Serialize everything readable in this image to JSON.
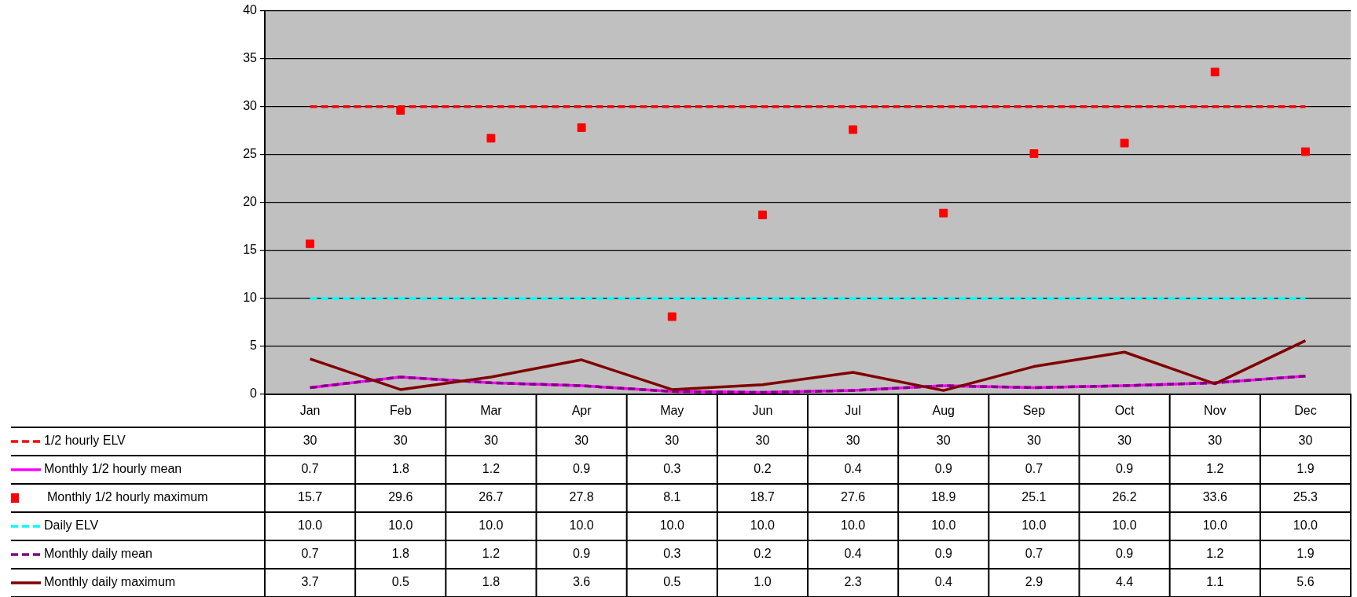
{
  "chart_data": {
    "type": "line",
    "categories": [
      "Jan",
      "Feb",
      "Mar",
      "Apr",
      "May",
      "Jun",
      "Jul",
      "Aug",
      "Sep",
      "Oct",
      "Nov",
      "Dec"
    ],
    "ylim": [
      0,
      40
    ],
    "yticks": [
      0,
      5,
      10,
      15,
      20,
      25,
      30,
      35,
      40
    ],
    "grid": "y",
    "legend": "bottom left",
    "data_labels": true,
    "series": [
      {
        "name": "1/2 hourly ELV",
        "line_style": "dashed",
        "marker": "none",
        "color": "#ff0000",
        "values": [
          30,
          30,
          30,
          30,
          30,
          30,
          30,
          30,
          30,
          30,
          30,
          30
        ],
        "value_labels": [
          "30",
          "30",
          "30",
          "30",
          "30",
          "30",
          "30",
          "30",
          "30",
          "30",
          "30",
          "30"
        ]
      },
      {
        "name": "Monthly 1/2 hourly mean",
        "line_style": "solid",
        "marker": "none",
        "color": "#ff00ff",
        "values": [
          0.7,
          1.8,
          1.2,
          0.9,
          0.3,
          0.2,
          0.4,
          0.9,
          0.7,
          0.9,
          1.2,
          1.9
        ],
        "value_labels": [
          "0.7",
          "1.8",
          "1.2",
          "0.9",
          "0.3",
          "0.2",
          "0.4",
          "0.9",
          "0.7",
          "0.9",
          "1.2",
          "1.9"
        ]
      },
      {
        "name": "Monthly 1/2 hourly maximum",
        "type": "scatter",
        "marker": "square",
        "color": "#ff0000",
        "values": [
          15.7,
          29.6,
          26.7,
          27.8,
          8.1,
          18.7,
          27.6,
          18.9,
          25.1,
          26.2,
          33.6,
          25.3
        ],
        "value_labels": [
          "15.7",
          "29.6",
          "26.7",
          "27.8",
          "8.1",
          "18.7",
          "27.6",
          "18.9",
          "25.1",
          "26.2",
          "33.6",
          "25.3"
        ]
      },
      {
        "name": "Daily ELV",
        "line_style": "dashed",
        "marker": "none",
        "color": "#00ffff",
        "values": [
          10,
          10,
          10,
          10,
          10,
          10,
          10,
          10,
          10,
          10,
          10,
          10
        ],
        "value_labels": [
          "10.0",
          "10.0",
          "10.0",
          "10.0",
          "10.0",
          "10.0",
          "10.0",
          "10.0",
          "10.0",
          "10.0",
          "10.0",
          "10.0"
        ]
      },
      {
        "name": "Monthly daily mean",
        "line_style": "dashed",
        "marker": "none",
        "color": "#800080",
        "values": [
          0.7,
          1.8,
          1.2,
          0.9,
          0.3,
          0.2,
          0.4,
          0.9,
          0.7,
          0.9,
          1.2,
          1.9
        ],
        "value_labels": [
          "0.7",
          "1.8",
          "1.2",
          "0.9",
          "0.3",
          "0.2",
          "0.4",
          "0.9",
          "0.7",
          "0.9",
          "1.2",
          "1.9"
        ]
      },
      {
        "name": "Monthly daily maximum",
        "line_style": "solid",
        "marker": "none",
        "color": "#800000",
        "values": [
          3.7,
          0.5,
          1.8,
          3.6,
          0.5,
          1.0,
          2.3,
          0.4,
          2.9,
          4.4,
          1.1,
          5.6
        ],
        "value_labels": [
          "3.7",
          "0.5",
          "1.8",
          "3.6",
          "0.5",
          "1.0",
          "2.3",
          "0.4",
          "2.9",
          "4.4",
          "1.1",
          "5.6"
        ]
      }
    ]
  }
}
